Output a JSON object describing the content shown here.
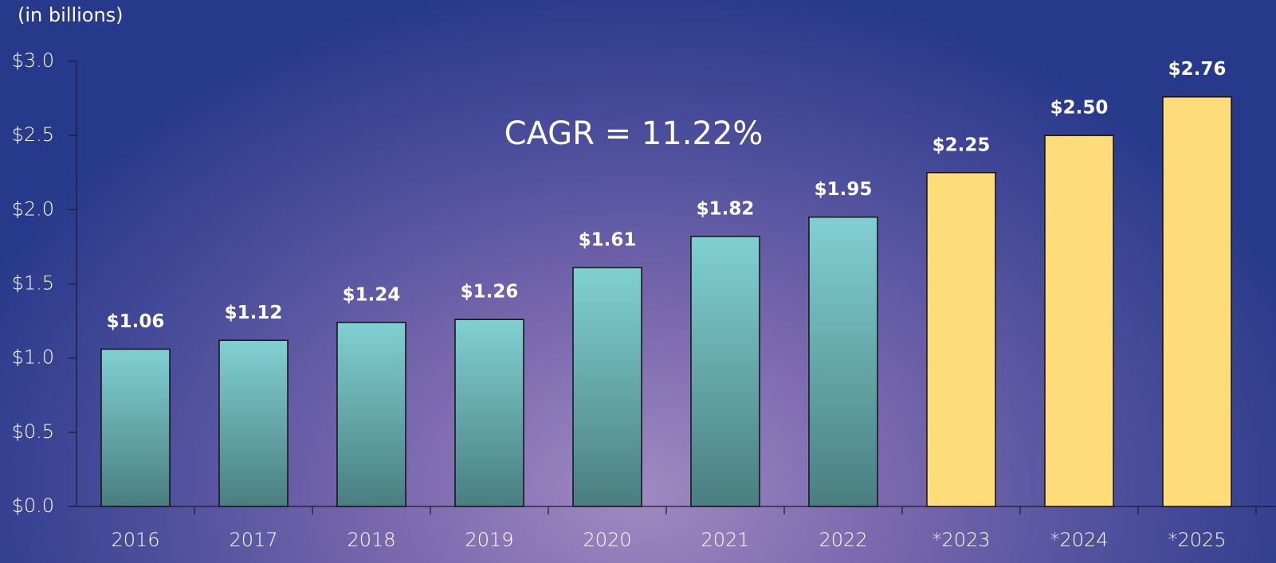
{
  "chart_data": {
    "type": "bar",
    "ylabel": "(in billions)",
    "annotation": "CAGR = 11.22%",
    "categories": [
      "2016",
      "2017",
      "2018",
      "2019",
      "2020",
      "2021",
      "2022",
      "*2023",
      "*2024",
      "*2025"
    ],
    "values": [
      1.06,
      1.12,
      1.24,
      1.26,
      1.61,
      1.82,
      1.95,
      2.25,
      2.5,
      2.76
    ],
    "value_labels": [
      "$1.06",
      "$1.12",
      "$1.24",
      "$1.26",
      "$1.61",
      "$1.82",
      "$1.95",
      "$2.25",
      "$2.50",
      "$2.76"
    ],
    "colors": [
      [
        "#80d0d2",
        "#4a7e80"
      ],
      [
        "#80d0d2",
        "#4a7e80"
      ],
      [
        "#80d0d2",
        "#4a7e80"
      ],
      [
        "#80d0d2",
        "#4a7e80"
      ],
      [
        "#80d0d2",
        "#4a7e80"
      ],
      [
        "#80d0d2",
        "#4a7e80"
      ],
      [
        "#80d0d2",
        "#4a7e80"
      ],
      "#fedc7a",
      "#fedc7a",
      "#fedc7a"
    ],
    "ylim": [
      0,
      3.0
    ],
    "yticks": [
      {
        "value": 0,
        "label": "$0.0"
      },
      {
        "value": 0.5,
        "label": "$0.5"
      },
      {
        "value": 1.0,
        "label": "$1.0"
      },
      {
        "value": 1.5,
        "label": "$1.5"
      },
      {
        "value": 2.0,
        "label": "$2.0"
      },
      {
        "value": 2.5,
        "label": "$2.5"
      },
      {
        "value": 3.0,
        "label": "$3.0"
      }
    ],
    "grid": false
  }
}
